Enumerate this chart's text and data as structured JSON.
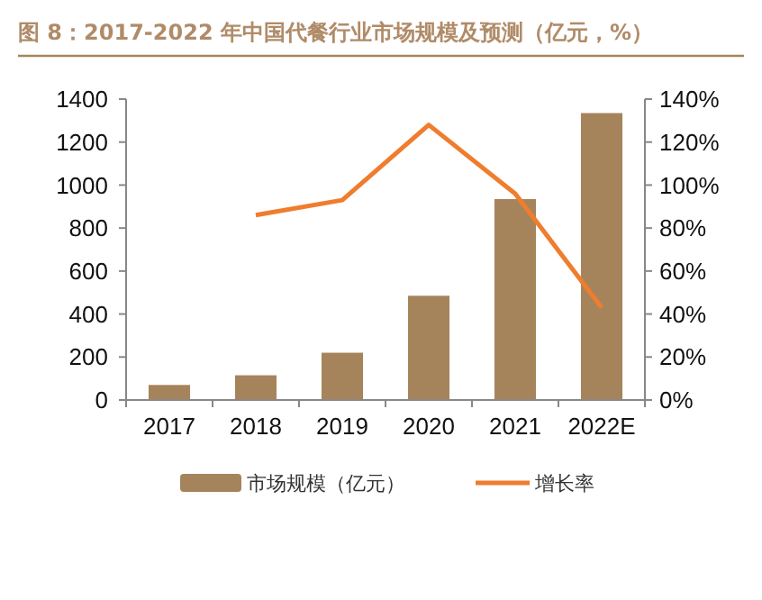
{
  "chart_data": {
    "type": "bar",
    "title": "图 8：2017-2022 年中国代餐行业市场规模及预测（亿元，%）",
    "categories": [
      "2017",
      "2018",
      "2019",
      "2020",
      "2021",
      "2022E"
    ],
    "series": [
      {
        "name": "市场规模（亿元）",
        "color": "#a6845b",
        "values": [
          70,
          115,
          220,
          485,
          935,
          1335
        ]
      },
      {
        "name": "增长率",
        "type": "line",
        "axis": "y2",
        "color": "#ef7d2e",
        "values": [
          null,
          86,
          93,
          128,
          96,
          43
        ]
      }
    ],
    "ylim": [
      0,
      1400
    ],
    "yticks": [
      0,
      200,
      400,
      600,
      800,
      1000,
      1200,
      1400
    ],
    "y2lim": [
      0,
      140
    ],
    "y2ticks": [
      {
        "value": 0,
        "label": "0%"
      },
      {
        "value": 20,
        "label": "20%"
      },
      {
        "value": 40,
        "label": "40%"
      },
      {
        "value": 60,
        "label": "60%"
      },
      {
        "value": 80,
        "label": "80%"
      },
      {
        "value": 100,
        "label": "100%"
      },
      {
        "value": 120,
        "label": "120%"
      },
      {
        "value": 140,
        "label": "140%"
      }
    ],
    "legend": "bottom",
    "grid": false,
    "marker": "none",
    "line_style": "solid"
  }
}
